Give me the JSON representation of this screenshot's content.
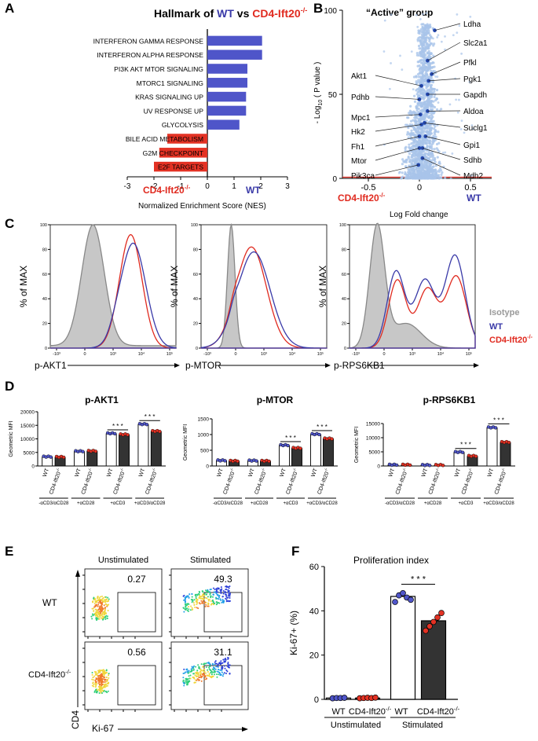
{
  "panel_letters": [
    "A",
    "B",
    "C",
    "D",
    "E",
    "F"
  ],
  "colors": {
    "wt": "#3a3aa8",
    "ko": "#e02a1f",
    "isotype": "#bdbdbd",
    "wt_bar": "#4f55c9",
    "ko_bar": "#e33224",
    "dark_bar": "#333333",
    "volcano": "#a9c4ea",
    "volcano_hi": "#2448b0"
  },
  "panel_a": {
    "title_prefix": "Hallmark of ",
    "title_wt": "WT",
    "title_vs": " vs ",
    "title_ko": "CD4-Ift20",
    "title_ko_sup": "-/-",
    "ko_label": "CD4-Ift20",
    "ko_sup": "-/-",
    "wt_label": "WT",
    "xlabel": "Normalized Enrichment Score (NES)"
  },
  "panel_b": {
    "title": "“Active” group",
    "ylabel_prefix": "- Log",
    "ylabel_sub": "10",
    "ylabel_suffix": " ( P value )",
    "xlabel": "Log Fold change",
    "ko_label": "CD4-Ift20",
    "ko_sup": "-/-",
    "wt_label": "WT",
    "genes_right": [
      "Ldha",
      "Slc2a1",
      "Pfkl",
      "Pgk1",
      "Gapdh",
      "Aldoa",
      "Suclg1",
      "Gpi1",
      "Sdhb",
      "Mdh2"
    ],
    "genes_left": [
      "Akt1",
      "Pdhb",
      "Mpc1",
      "Hk2",
      "Fh1",
      "Mtor",
      "Pik3ca"
    ]
  },
  "panel_c": {
    "ylabel": "% of MAX",
    "y_ticks": [
      "100",
      "80",
      "60",
      "40",
      "20",
      "0"
    ],
    "x_ticks_1": [
      "-10³",
      "0",
      "10³",
      "10⁴",
      "10⁵"
    ],
    "x_ticks_2": [
      "-10³",
      "0",
      "10³",
      "10⁴",
      "10⁵"
    ],
    "x_ticks_3": [
      "-10³",
      "0",
      "10³",
      "10⁴",
      "10⁵"
    ],
    "histograms": [
      "p-AKT1",
      "p-MTOR",
      "p-RPS6KB1"
    ],
    "legend": {
      "isotype": "Isotype",
      "wt": "WT",
      "ko": "CD4-Ift20",
      "ko_sup": "-/-"
    }
  },
  "panel_d": {
    "ylabel": "Geometric MFI",
    "group_labels": [
      "-αCD3/αCD28",
      "+αCD28",
      "+αCD3",
      "+αCD3/αCD28"
    ],
    "bar_labels": [
      "WT",
      "CD4-Ift20",
      "WT",
      "CD4-Ift20",
      "WT",
      "CD4-Ift20",
      "WT",
      "CD4-Ift20"
    ],
    "sig": "* * *"
  },
  "panel_e": {
    "col_headers": [
      "Unstimulated",
      "Stimulated"
    ],
    "row_labels": [
      "WT",
      "CD4-Ift20"
    ],
    "row_sup": "-/-",
    "gate_values": [
      "0.27",
      "49.3",
      "0.56",
      "31.1"
    ],
    "y_axis": "CD4",
    "x_axis": "Ki-67"
  },
  "chart_data": [
    {
      "type": "bar",
      "panel": "A",
      "title": "Hallmark of WT vs CD4-Ift20-/-",
      "categories": [
        "INTERFERON GAMMA RESPONSE",
        "INTERFERON ALPHA RESPONSE",
        "PI3K AKT MTOR SIGNALING",
        "MTORC1 SIGNALING",
        "KRAS SIGNALING UP",
        "UV RESPONSE UP",
        "GLYCOLYSIS",
        "BILE ACID METABOLISM",
        "G2M CHECKPOINT",
        "E2F TARGETS"
      ],
      "values": [
        2.05,
        2.05,
        1.5,
        1.5,
        1.45,
        1.45,
        1.2,
        -1.5,
        -1.8,
        -2.0
      ],
      "xlabel": "Normalized Enrichment Score (NES)",
      "xlim": [
        -3,
        3
      ],
      "ticks": [
        "-3",
        "-2",
        "-1",
        "0",
        "1",
        "2",
        "3"
      ]
    },
    {
      "type": "scatter",
      "panel": "B",
      "title": "“Active” group",
      "xlabel": "Log Fold change",
      "ylabel": "-Log10 ( P value )",
      "xlim": [
        -0.65,
        0.65
      ],
      "ylim": [
        0,
        100
      ],
      "x_ticks": [
        "-0.5",
        "0",
        "0.5"
      ],
      "y_ticks": [
        "0",
        "50",
        "100"
      ],
      "highlighted": [
        {
          "gene": "Ldha",
          "x": 0.15,
          "y": 88
        },
        {
          "gene": "Slc2a1",
          "x": 0.08,
          "y": 70
        },
        {
          "gene": "Pfkl",
          "x": 0.12,
          "y": 62
        },
        {
          "gene": "Pgk1",
          "x": 0.09,
          "y": 58
        },
        {
          "gene": "Gapdh",
          "x": 0.08,
          "y": 50
        },
        {
          "gene": "Aldoa",
          "x": 0.08,
          "y": 40
        },
        {
          "gene": "Suclg1",
          "x": 0.05,
          "y": 33
        },
        {
          "gene": "Gpi1",
          "x": 0.06,
          "y": 25
        },
        {
          "gene": "Sdhb",
          "x": 0.03,
          "y": 18
        },
        {
          "gene": "Mdh2",
          "x": 0.03,
          "y": 12
        },
        {
          "gene": "Akt1",
          "x": 0.02,
          "y": 55
        },
        {
          "gene": "Pdhb",
          "x": 0.0,
          "y": 47
        },
        {
          "gene": "Mpc1",
          "x": 0.01,
          "y": 38
        },
        {
          "gene": "Hk2",
          "x": 0.02,
          "y": 32
        },
        {
          "gene": "Fh1",
          "x": 0.0,
          "y": 25
        },
        {
          "gene": "Mtor",
          "x": 0.0,
          "y": 18
        },
        {
          "gene": "Pik3ca",
          "x": -0.01,
          "y": 8
        }
      ]
    },
    {
      "type": "bar",
      "panel": "D",
      "title": "p-AKT1",
      "ylabel": "Geometric MFI",
      "ylim": [
        0,
        20000
      ],
      "ticks": [
        "0",
        "5000",
        "10000",
        "15000",
        "20000"
      ],
      "categories": [
        "WT",
        "CD4-Ift20-/-",
        "WT",
        "CD4-Ift20-/-",
        "WT",
        "CD4-Ift20-/-",
        "WT",
        "CD4-Ift20-/-"
      ],
      "values": [
        3300,
        3200,
        5300,
        5400,
        11900,
        11500,
        15300,
        12700
      ],
      "significance": [
        [
          4,
          5
        ],
        [
          6,
          7
        ]
      ]
    },
    {
      "type": "bar",
      "panel": "D",
      "title": "p-MTOR",
      "ylabel": "Geometric MFI",
      "ylim": [
        0,
        1500
      ],
      "ticks": [
        "0",
        "500",
        "1000",
        "1500"
      ],
      "categories": [
        "WT",
        "CD4-Ift20-/-",
        "WT",
        "CD4-Ift20-/-",
        "WT",
        "CD4-Ift20-/-",
        "WT",
        "CD4-Ift20-/-"
      ],
      "values": [
        165,
        150,
        160,
        150,
        650,
        560,
        1000,
        860
      ],
      "significance": [
        [
          4,
          5
        ],
        [
          6,
          7
        ]
      ]
    },
    {
      "type": "bar",
      "panel": "D",
      "title": "p-RPS6KB1",
      "ylabel": "Geometric MFI",
      "ylim": [
        0,
        15000
      ],
      "ticks": [
        "0",
        "5000",
        "10000",
        "15000"
      ],
      "categories": [
        "WT",
        "CD4-Ift20-/-",
        "WT",
        "CD4-Ift20-/-",
        "WT",
        "CD4-Ift20-/-",
        "WT",
        "CD4-Ift20-/-"
      ],
      "values": [
        300,
        300,
        200,
        200,
        4800,
        3400,
        13500,
        8300
      ],
      "significance": [
        [
          4,
          5
        ],
        [
          6,
          7
        ]
      ]
    },
    {
      "type": "bar",
      "panel": "F",
      "title": "Proliferation index",
      "ylabel": "Ki-67+ (%)",
      "ylim": [
        0,
        60
      ],
      "ticks": [
        "0",
        "20",
        "40",
        "60"
      ],
      "categories": [
        "WT",
        "CD4-Ift20-/-",
        "WT",
        "CD4-Ift20-/-"
      ],
      "groups": [
        "Unstimulated",
        "Stimulated"
      ],
      "values": [
        0.6,
        0.6,
        46.5,
        35.5
      ],
      "points": [
        [
          0.5,
          0.6,
          0.6,
          0.7
        ],
        [
          0.5,
          0.6,
          0.7,
          0.6,
          0.8
        ],
        [
          44,
          47,
          48,
          46,
          45
        ],
        [
          31,
          33,
          35,
          37,
          39
        ]
      ],
      "significance": [
        [
          2,
          3
        ]
      ],
      "sig_label": "* * *"
    }
  ]
}
